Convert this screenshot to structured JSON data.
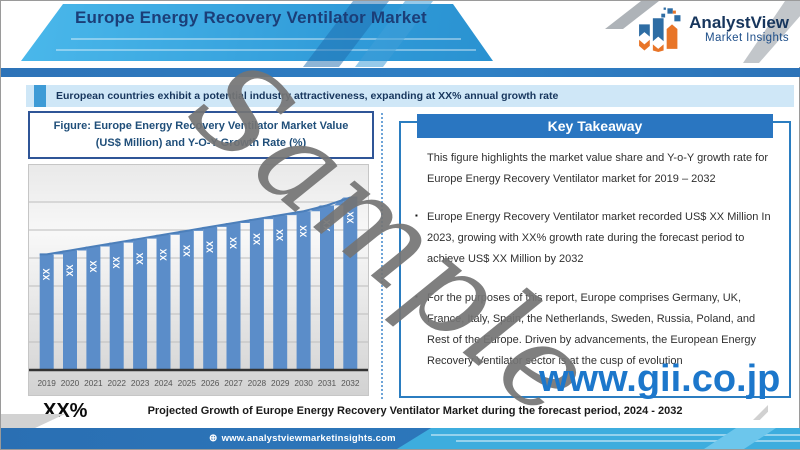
{
  "header": {
    "title": "Europe Energy Recovery Ventilator Market",
    "logo": {
      "name": "AnalystView",
      "tagline": "Market Insights"
    }
  },
  "banner": {
    "text": "European countries exhibit a potential industry attractiveness, expanding at XX% annual growth rate"
  },
  "figure": {
    "title": "Figure: Europe Energy Recovery Ventilator Market Value (US$ Million) and Y-O-Y Growth Rate (%)"
  },
  "chart_data": {
    "type": "bar",
    "title": "Europe Energy Recovery Ventilator Market Value (US$ Million) and Y-O-Y Growth Rate (%)",
    "categories": [
      "2019",
      "2020",
      "2021",
      "2022",
      "2023",
      "2024",
      "2025",
      "2026",
      "2027",
      "2028",
      "2029",
      "2030",
      "2031",
      "2032"
    ],
    "series": [
      {
        "name": "Market Value (US$ Million)",
        "values": [
          59,
          61,
          63,
          65,
          67,
          69,
          71,
          73,
          75,
          77,
          79,
          81,
          84,
          88
        ],
        "value_label": "XX",
        "values_masked": true
      }
    ],
    "line_overlay_connecting_bar_tops": true,
    "xlabel": "",
    "ylabel": "",
    "ylim": [
      0,
      100
    ],
    "grid": true,
    "legend": false,
    "y_tick_labels_visible": false
  },
  "key_takeaway": {
    "title": "Key Takeaway",
    "items": [
      {
        "bullet": "",
        "text": "This figure highlights the market value share and Y-o-Y growth rate for Europe Energy Recovery Ventilator market for 2019 – 2032"
      },
      {
        "bullet": "▪",
        "text": "Europe Energy Recovery Ventilator market recorded US$ XX Million In 2023, growing with XX% growth rate during the forecast period to achieve US$ XX Million by 2032"
      },
      {
        "bullet": "▪",
        "text": "For the purposes of this report, Europe comprises Germany, UK, France, Italy, Spain, the Netherlands, Sweden, Russia, Poland, and Rest of the Europe. Driven by advancements, the European Energy Recovery Ventilator sector is at the cusp of evolution"
      }
    ]
  },
  "bottom": {
    "growth_label": "XX%",
    "caption": "Projected Growth of Europe Energy Recovery Ventilator Market during the forecast period, 2024 - 2032"
  },
  "footer": {
    "globe_glyph": "⊕",
    "website": "www.analystviewmarketinsights.com"
  },
  "watermarks": {
    "sample": "Sample",
    "gii": "www.gii.co.jp"
  },
  "colors": {
    "accent_blue": "#2a76c1",
    "bar_blue": "#5b8dc9",
    "bar_top_line": "#4c7fba",
    "banner_bg": "#cfe7f7",
    "navy_text": "#17365d",
    "gii_blue": "#1c77cb",
    "watermark_gray": "#757575"
  }
}
